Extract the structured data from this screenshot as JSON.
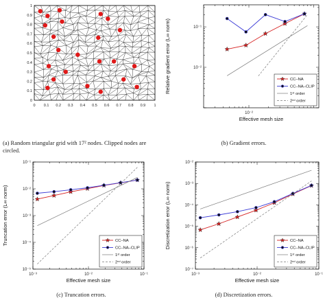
{
  "colors": {
    "cc_na": "#d62020",
    "cc_na_clip": "#3a3ad6",
    "first_order": "#7a7a7a",
    "second_order": "#7a7a7a",
    "clipped_node": "#e01818",
    "grid_line": "#222222"
  },
  "captions": {
    "a": "(a) Random triangular grid with 17² nodes. Clipped nodes are circled.",
    "b": "(b) Gradient errors.",
    "c": "(c) Truncation errors.",
    "d": "(d) Discretization errors."
  },
  "chart_data": [
    {
      "id": "a",
      "type": "scatter",
      "grid_nodes_per_side": 17,
      "xlim": [
        0,
        1
      ],
      "ylim": [
        0,
        1
      ],
      "x_ticks": [
        "0",
        "0.1",
        "0.2",
        "0.3",
        "0.4",
        "0.5",
        "0.6",
        "0.7",
        "0.8",
        "0.9",
        "1"
      ],
      "y_ticks": [
        "0",
        "0.1",
        "0.2",
        "0.3",
        "0.4",
        "0.5",
        "0.6",
        "0.7",
        "0.8",
        "0.9",
        "1"
      ],
      "clipped_nodes": [
        {
          "x": 0.05,
          "y": 0.94
        },
        {
          "x": 0.11,
          "y": 0.89
        },
        {
          "x": 0.21,
          "y": 0.95
        },
        {
          "x": 0.55,
          "y": 0.91
        },
        {
          "x": 0.09,
          "y": 0.79
        },
        {
          "x": 0.23,
          "y": 0.83
        },
        {
          "x": 0.61,
          "y": 0.86
        },
        {
          "x": 0.16,
          "y": 0.67
        },
        {
          "x": 0.53,
          "y": 0.66
        },
        {
          "x": 0.71,
          "y": 0.74
        },
        {
          "x": 0.2,
          "y": 0.53
        },
        {
          "x": 0.36,
          "y": 0.48
        },
        {
          "x": 0.54,
          "y": 0.41
        },
        {
          "x": 0.66,
          "y": 0.41
        },
        {
          "x": 0.12,
          "y": 0.36
        },
        {
          "x": 0.26,
          "y": 0.3
        },
        {
          "x": 0.83,
          "y": 0.36
        },
        {
          "x": 0.16,
          "y": 0.22
        },
        {
          "x": 0.44,
          "y": 0.15
        },
        {
          "x": 0.74,
          "y": 0.22
        },
        {
          "x": 0.11,
          "y": 0.13
        },
        {
          "x": 0.55,
          "y": 0.09
        },
        {
          "x": 0.85,
          "y": 0.14
        }
      ]
    },
    {
      "id": "b",
      "type": "line",
      "log_x": true,
      "log_y": true,
      "xlim": [
        0.002,
        0.12
      ],
      "ylim": [
        0.001,
        0.35
      ],
      "xlabel": "Effective mesh size",
      "ylabel": "Relative gradient error (L∞ norm)",
      "x_ticks": [
        {
          "value": 0.01,
          "label": "10⁻²"
        }
      ],
      "y_ticks": [
        {
          "value": 0.1,
          "label": "10⁻¹"
        },
        {
          "value": 0.01,
          "label": "10⁻²"
        }
      ],
      "legend_position": "bottom-right",
      "series": [
        {
          "name": "CC–NA",
          "x": [
            0.0046,
            0.009,
            0.018,
            0.036,
            0.072
          ],
          "y": [
            0.028,
            0.035,
            0.068,
            0.12,
            0.21
          ],
          "marker": "star"
        },
        {
          "name": "CC–NA–CLIP",
          "x": [
            0.0046,
            0.009,
            0.018,
            0.036,
            0.072
          ],
          "y": [
            0.16,
            0.075,
            0.2,
            0.135,
            0.21
          ],
          "marker": "dot"
        },
        {
          "name": "1ˢᵗ order",
          "x": [
            0.0046,
            0.08
          ],
          "y": [
            0.0062,
            0.107
          ],
          "style": "solid"
        },
        {
          "name": "2ⁿᵈ order",
          "x": [
            0.014,
            0.08
          ],
          "y": [
            0.0061,
            0.2
          ],
          "style": "dashed"
        }
      ]
    },
    {
      "id": "c",
      "type": "line",
      "log_x": true,
      "log_y": true,
      "xlim": [
        0.001,
        0.1
      ],
      "ylim": [
        1e-05,
        0.1
      ],
      "xlabel": "Effective mesh size",
      "ylabel": "Truncation error (L∞ norm)",
      "x_ticks": [
        {
          "value": 0.001,
          "label": "10⁻³"
        },
        {
          "value": 0.01,
          "label": "10⁻²"
        },
        {
          "value": 0.1,
          "label": "10⁻¹"
        }
      ],
      "y_ticks": [
        {
          "value": 1e-05,
          "label": "10⁻⁵"
        },
        {
          "value": 0.0001,
          "label": "10⁻⁴"
        },
        {
          "value": 0.001,
          "label": "10⁻³"
        },
        {
          "value": 0.01,
          "label": "10⁻²"
        },
        {
          "value": 0.1,
          "label": "10⁻¹"
        }
      ],
      "legend_position": "bottom-right",
      "series": [
        {
          "name": "CC–NA",
          "x": [
            0.0012,
            0.0024,
            0.0048,
            0.0096,
            0.019,
            0.038,
            0.076
          ],
          "y": [
            0.0041,
            0.0056,
            0.0077,
            0.0101,
            0.0133,
            0.0167,
            0.0212
          ],
          "marker": "star"
        },
        {
          "name": "CC–NA–CLIP",
          "x": [
            0.0012,
            0.0024,
            0.0048,
            0.0096,
            0.019,
            0.038,
            0.076
          ],
          "y": [
            0.0068,
            0.0078,
            0.0092,
            0.0109,
            0.0136,
            0.0169,
            0.0212
          ],
          "marker": "dot"
        },
        {
          "name": "1ˢᵗ order",
          "x": [
            0.0012,
            0.076
          ],
          "y": [
            0.00042,
            0.0265
          ],
          "style": "solid"
        },
        {
          "name": "2ⁿᵈ order",
          "x": [
            0.0012,
            0.076
          ],
          "y": [
            1.55e-05,
            0.063
          ],
          "style": "dashed"
        }
      ]
    },
    {
      "id": "d",
      "type": "line",
      "log_x": true,
      "log_y": true,
      "xlim": [
        0.001,
        0.1
      ],
      "ylim": [
        1e-07,
        0.01
      ],
      "xlabel": "Effective mesh size",
      "ylabel": "Discretization error (L∞ norm)",
      "x_ticks": [
        {
          "value": 0.001,
          "label": "10⁻³"
        },
        {
          "value": 0.01,
          "label": "10⁻²"
        },
        {
          "value": 0.1,
          "label": "10⁻¹"
        }
      ],
      "y_ticks": [
        {
          "value": 1e-07,
          "label": "10⁻⁷"
        },
        {
          "value": 1e-06,
          "label": "10⁻⁶"
        },
        {
          "value": 1e-05,
          "label": "10⁻⁵"
        },
        {
          "value": 0.0001,
          "label": "10⁻⁴"
        },
        {
          "value": 0.001,
          "label": "10⁻³"
        },
        {
          "value": 0.01,
          "label": "10⁻²"
        }
      ],
      "legend_position": "bottom-right",
      "series": [
        {
          "name": "CC–NA",
          "x": [
            0.0012,
            0.0024,
            0.0048,
            0.0096,
            0.019,
            0.038,
            0.076
          ],
          "y": [
            6.8e-06,
            1.3e-05,
            2.7e-05,
            5.6e-05,
            0.000125,
            0.00032,
            0.00079
          ],
          "marker": "star"
        },
        {
          "name": "CC–NA–CLIP",
          "x": [
            0.0012,
            0.0024,
            0.0048,
            0.0096,
            0.019,
            0.038,
            0.076
          ],
          "y": [
            2.5e-05,
            3.4e-05,
            4.8e-05,
            7.4e-05,
            0.00014,
            0.00034,
            0.00081
          ],
          "marker": "dot"
        },
        {
          "name": "1ˢᵗ order",
          "x": [
            0.0012,
            0.076
          ],
          "y": [
            6.4e-05,
            0.0041
          ],
          "style": "solid"
        },
        {
          "name": "2ⁿᵈ order",
          "x": [
            0.0012,
            0.076
          ],
          "y": [
            3.3e-07,
            0.0013
          ],
          "style": "dashed"
        }
      ]
    }
  ]
}
